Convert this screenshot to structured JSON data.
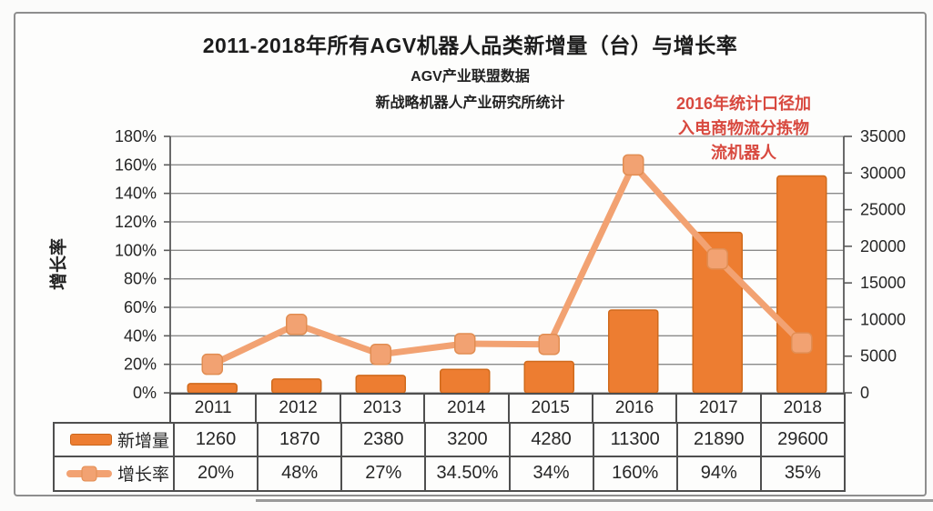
{
  "chart_data": {
    "type": "combo-bar-line",
    "title": "2011-2018年所有AGV机器人品类新增量（台）与增长率",
    "subtitle1": "AGV产业联盟数据",
    "subtitle2": "新战略机器人产业研究所统计",
    "annotation_lines": [
      "2016年统计口径加",
      "入电商物流分拣物",
      "流机器人"
    ],
    "categories": [
      "2011",
      "2012",
      "2013",
      "2014",
      "2015",
      "2016",
      "2017",
      "2018"
    ],
    "series": [
      {
        "name": "新增量",
        "type": "bar",
        "axis": "right",
        "values": [
          1260,
          1870,
          2380,
          3200,
          4280,
          11300,
          21890,
          29600
        ],
        "values_display": [
          "1260",
          "1870",
          "2380",
          "3200",
          "4280",
          "11300",
          "21890",
          "29600"
        ],
        "color": "#ed7d31",
        "border_color": "#d06a1c"
      },
      {
        "name": "增长率",
        "type": "line",
        "axis": "left",
        "values": [
          20,
          48,
          27,
          34.5,
          34,
          160,
          94,
          35
        ],
        "values_display": [
          "20%",
          "48%",
          "27%",
          "34.50%",
          "34%",
          "160%",
          "94%",
          "35%"
        ],
        "color": "#f2a272",
        "marker_border": "#e18d52"
      }
    ],
    "left_axis": {
      "label": "增长率",
      "min": 0,
      "max": 180,
      "step": 20,
      "unit": "%"
    },
    "right_axis": {
      "min": 0,
      "max": 35000,
      "step": 5000
    },
    "grid": "horizontal-on",
    "legend_position": "table-bottom-left",
    "colors": {
      "gridline": "#8a8a8a",
      "axis": "#5a5a5a",
      "table_border": "#4f4f4f",
      "annotation_red": "#d8493f",
      "frame_border": "#8e8e8e"
    }
  }
}
